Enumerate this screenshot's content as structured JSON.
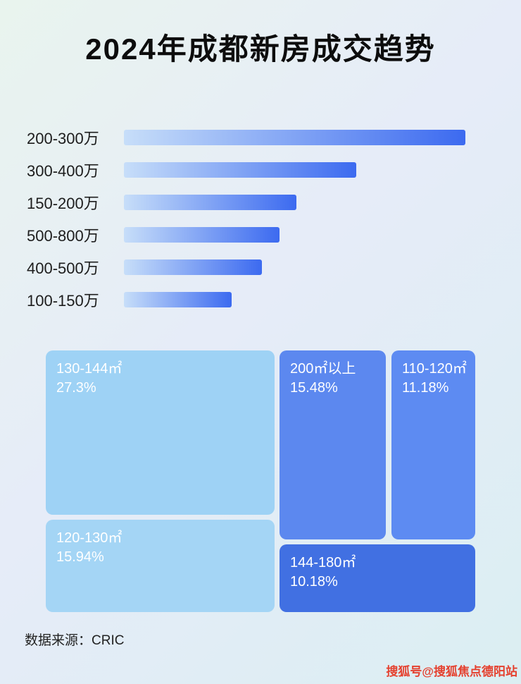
{
  "page": {
    "title": "2024年成都新房成交趋势",
    "footer": "数据来源：CRIC",
    "watermark": "搜狐号@搜狐焦点德阳站"
  },
  "colors": {
    "bar_gradient_start": "#c7def9",
    "bar_gradient_end": "#3c6af0",
    "watermark_red": "#e5402e",
    "background_tint": "#e6ecf8"
  },
  "chart_data": [
    {
      "type": "bar",
      "orientation": "horizontal",
      "title": "2024年成都新房成交趋势",
      "categories": [
        "200-300万",
        "300-400万",
        "150-200万",
        "500-800万",
        "400-500万",
        "100-150万"
      ],
      "values_relative_pct": [
        100,
        68,
        50.5,
        45.5,
        40.5,
        31.5
      ],
      "xlabel": "",
      "ylabel": "",
      "axis_labels_shown": false,
      "note": "no numeric axis shown in image; values are relative bar lengths as % of longest bar",
      "grid": false,
      "legend": false
    },
    {
      "type": "treemap",
      "title": "",
      "items": [
        {
          "label": "130-144㎡",
          "value_pct": 27.3,
          "display": "27.3%",
          "color": "#9ed2f5"
        },
        {
          "label": "200㎡以上",
          "value_pct": 15.48,
          "display": "15.48%",
          "color": "#5c88ef"
        },
        {
          "label": "110-120㎡",
          "value_pct": 11.18,
          "display": "11.18%",
          "color": "#5d8bf2"
        },
        {
          "label": "120-130㎡",
          "value_pct": 15.94,
          "display": "15.94%",
          "color": "#a4d5f5"
        },
        {
          "label": "144-180㎡",
          "value_pct": 10.18,
          "display": "10.18%",
          "color": "#4170e2"
        }
      ]
    }
  ]
}
